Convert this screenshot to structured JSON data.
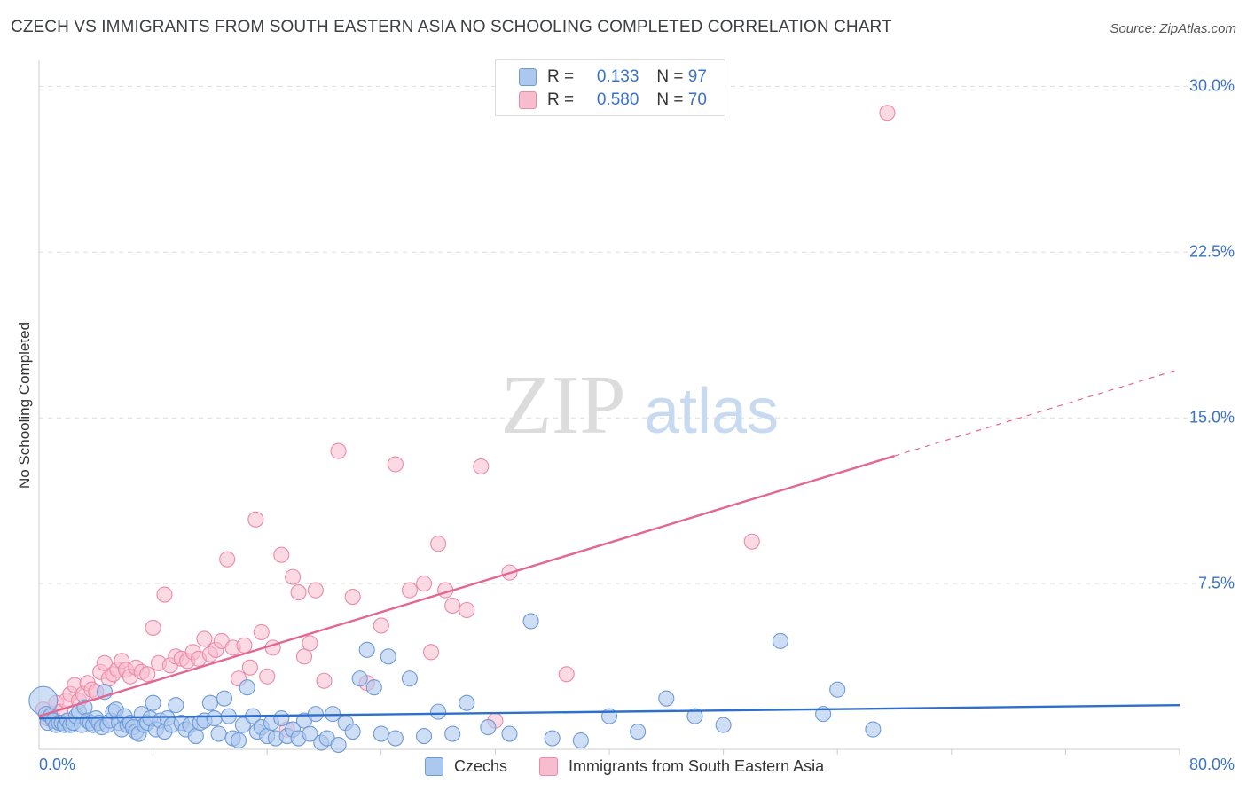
{
  "title": "CZECH VS IMMIGRANTS FROM SOUTH EASTERN ASIA NO SCHOOLING COMPLETED CORRELATION CHART",
  "source": "Source: ZipAtlas.com",
  "watermark": {
    "zip": "ZIP",
    "atlas": "atlas"
  },
  "legend_top": [
    {
      "r_label": "R =",
      "r_value": "0.133",
      "n_label": "N =",
      "n_value": "97"
    },
    {
      "r_label": "R =",
      "r_value": "0.580",
      "n_label": "N =",
      "n_value": "70"
    }
  ],
  "legend_bottom": [
    "Czechs",
    "Immigrants from South Eastern Asia"
  ],
  "colors": {
    "blue_fill": "#adc8ee",
    "blue_stroke": "#6f9ad8",
    "blue_line": "#2e6fcc",
    "pink_fill": "#f7bccd",
    "pink_stroke": "#ec8aa8",
    "pink_line": "#e26893",
    "tick": "#3a73c6",
    "grid": "#dddddd"
  },
  "chart_data": {
    "type": "scatter",
    "title": "CZECH VS IMMIGRANTS FROM SOUTH EASTERN ASIA NO SCHOOLING COMPLETED CORRELATION CHART",
    "xlabel": "",
    "ylabel": "No Schooling Completed",
    "xlim": [
      0,
      80
    ],
    "ylim": [
      0,
      31.5
    ],
    "x_tick_labels": [
      "0.0%",
      "80.0%"
    ],
    "y_ticks": [
      7.5,
      15.0,
      22.5,
      30.0
    ],
    "y_tick_labels": [
      "7.5%",
      "15.0%",
      "22.5%",
      "30.0%"
    ],
    "grid": true,
    "legend_position": "top-center",
    "series": [
      {
        "name": "Czechs",
        "color": "#adc8ee",
        "r": 0.133,
        "n": 97,
        "trend": {
          "x": [
            0,
            80
          ],
          "y": [
            1.4,
            2.0
          ]
        },
        "points": [
          [
            0.3,
            2.2
          ],
          [
            0.5,
            1.6
          ],
          [
            0.6,
            1.2
          ],
          [
            0.8,
            1.5
          ],
          [
            1.0,
            1.3
          ],
          [
            1.2,
            1.1
          ],
          [
            1.4,
            1.2
          ],
          [
            1.6,
            1.2
          ],
          [
            1.8,
            1.1
          ],
          [
            2.0,
            1.3
          ],
          [
            2.2,
            1.1
          ],
          [
            2.4,
            1.2
          ],
          [
            2.6,
            1.5
          ],
          [
            2.8,
            1.7
          ],
          [
            3.0,
            1.1
          ],
          [
            3.2,
            1.9
          ],
          [
            3.4,
            1.3
          ],
          [
            3.6,
            1.2
          ],
          [
            3.8,
            1.1
          ],
          [
            4.0,
            1.4
          ],
          [
            4.2,
            1.2
          ],
          [
            4.4,
            1.0
          ],
          [
            4.6,
            2.6
          ],
          [
            4.8,
            1.1
          ],
          [
            5.0,
            1.3
          ],
          [
            5.2,
            1.7
          ],
          [
            5.4,
            1.8
          ],
          [
            5.6,
            1.2
          ],
          [
            5.8,
            0.9
          ],
          [
            6.0,
            1.5
          ],
          [
            6.2,
            1.1
          ],
          [
            6.4,
            1.2
          ],
          [
            6.6,
            1.0
          ],
          [
            6.8,
            0.8
          ],
          [
            7.0,
            0.7
          ],
          [
            7.2,
            1.6
          ],
          [
            7.4,
            1.1
          ],
          [
            7.6,
            1.2
          ],
          [
            7.8,
            1.4
          ],
          [
            8.0,
            2.1
          ],
          [
            8.2,
            0.9
          ],
          [
            8.5,
            1.3
          ],
          [
            8.8,
            0.8
          ],
          [
            9.0,
            1.4
          ],
          [
            9.3,
            1.1
          ],
          [
            9.6,
            2.0
          ],
          [
            10.0,
            1.2
          ],
          [
            10.3,
            0.9
          ],
          [
            10.6,
            1.1
          ],
          [
            11.0,
            0.6
          ],
          [
            11.3,
            1.2
          ],
          [
            11.6,
            1.3
          ],
          [
            12.0,
            2.1
          ],
          [
            12.3,
            1.4
          ],
          [
            12.6,
            0.7
          ],
          [
            13.0,
            2.3
          ],
          [
            13.3,
            1.5
          ],
          [
            13.6,
            0.5
          ],
          [
            14.0,
            0.4
          ],
          [
            14.3,
            1.1
          ],
          [
            14.6,
            2.8
          ],
          [
            15.0,
            1.5
          ],
          [
            15.3,
            0.8
          ],
          [
            15.6,
            1.0
          ],
          [
            16.0,
            0.6
          ],
          [
            16.3,
            1.2
          ],
          [
            16.6,
            0.5
          ],
          [
            17.0,
            1.4
          ],
          [
            17.4,
            0.6
          ],
          [
            17.8,
            0.9
          ],
          [
            18.2,
            0.5
          ],
          [
            18.6,
            1.3
          ],
          [
            19.0,
            0.7
          ],
          [
            19.4,
            1.6
          ],
          [
            19.8,
            0.3
          ],
          [
            20.2,
            0.5
          ],
          [
            20.6,
            1.6
          ],
          [
            21.0,
            0.2
          ],
          [
            21.5,
            1.2
          ],
          [
            22.0,
            0.8
          ],
          [
            22.5,
            3.2
          ],
          [
            23.0,
            4.5
          ],
          [
            23.5,
            2.8
          ],
          [
            24.0,
            0.7
          ],
          [
            24.5,
            4.2
          ],
          [
            25.0,
            0.5
          ],
          [
            26.0,
            3.2
          ],
          [
            27.0,
            0.6
          ],
          [
            28.0,
            1.7
          ],
          [
            29.0,
            0.7
          ],
          [
            30.0,
            2.1
          ],
          [
            31.5,
            1.0
          ],
          [
            33.0,
            0.7
          ],
          [
            34.5,
            5.8
          ],
          [
            36.0,
            0.5
          ],
          [
            38.0,
            0.4
          ],
          [
            40.0,
            1.5
          ],
          [
            42.0,
            0.8
          ],
          [
            44.0,
            2.3
          ],
          [
            46.0,
            1.5
          ],
          [
            48.0,
            1.1
          ],
          [
            52.0,
            4.9
          ],
          [
            55.0,
            1.6
          ],
          [
            56.0,
            2.7
          ],
          [
            58.5,
            0.9
          ]
        ]
      },
      {
        "name": "Immigrants from South Eastern Asia",
        "color": "#f7bccd",
        "r": 0.58,
        "n": 70,
        "trend": {
          "x": [
            0,
            80
          ],
          "y": [
            1.5,
            17.2
          ],
          "solid_to_x": 60
        },
        "points": [
          [
            0.3,
            1.8
          ],
          [
            0.6,
            1.4
          ],
          [
            0.9,
            1.6
          ],
          [
            1.2,
            2.1
          ],
          [
            1.5,
            1.7
          ],
          [
            1.9,
            2.2
          ],
          [
            2.2,
            2.5
          ],
          [
            2.5,
            2.9
          ],
          [
            2.8,
            2.2
          ],
          [
            3.1,
            2.5
          ],
          [
            3.4,
            3.0
          ],
          [
            3.7,
            2.7
          ],
          [
            4.0,
            2.6
          ],
          [
            4.3,
            3.5
          ],
          [
            4.6,
            3.9
          ],
          [
            4.9,
            3.2
          ],
          [
            5.2,
            3.4
          ],
          [
            5.5,
            3.6
          ],
          [
            5.8,
            4.0
          ],
          [
            6.1,
            3.6
          ],
          [
            6.4,
            3.3
          ],
          [
            6.8,
            3.7
          ],
          [
            7.2,
            3.5
          ],
          [
            7.6,
            3.4
          ],
          [
            8.0,
            5.5
          ],
          [
            8.4,
            3.9
          ],
          [
            8.8,
            7.0
          ],
          [
            9.2,
            3.8
          ],
          [
            9.6,
            4.2
          ],
          [
            10.0,
            4.1
          ],
          [
            10.4,
            4.0
          ],
          [
            10.8,
            4.4
          ],
          [
            11.2,
            4.1
          ],
          [
            11.6,
            5.0
          ],
          [
            12.0,
            4.3
          ],
          [
            12.4,
            4.5
          ],
          [
            12.8,
            4.9
          ],
          [
            13.2,
            8.6
          ],
          [
            13.6,
            4.6
          ],
          [
            14.0,
            3.2
          ],
          [
            14.4,
            4.7
          ],
          [
            14.8,
            3.7
          ],
          [
            15.2,
            10.4
          ],
          [
            15.6,
            5.3
          ],
          [
            16.0,
            3.3
          ],
          [
            16.4,
            4.6
          ],
          [
            17.0,
            8.8
          ],
          [
            17.4,
            0.9
          ],
          [
            17.8,
            7.8
          ],
          [
            18.2,
            7.1
          ],
          [
            18.6,
            4.2
          ],
          [
            19.0,
            4.8
          ],
          [
            19.4,
            7.2
          ],
          [
            20.0,
            3.1
          ],
          [
            21.0,
            13.5
          ],
          [
            22.0,
            6.9
          ],
          [
            23.0,
            3.0
          ],
          [
            24.0,
            5.6
          ],
          [
            25.0,
            12.9
          ],
          [
            26.0,
            7.2
          ],
          [
            27.0,
            7.5
          ],
          [
            27.5,
            4.4
          ],
          [
            28.0,
            9.3
          ],
          [
            28.5,
            7.2
          ],
          [
            29.0,
            6.5
          ],
          [
            30.0,
            6.3
          ],
          [
            31.0,
            12.8
          ],
          [
            32.0,
            1.3
          ],
          [
            33.0,
            8.0
          ],
          [
            37.0,
            3.4
          ],
          [
            50.0,
            9.4
          ],
          [
            59.5,
            28.8
          ]
        ]
      }
    ]
  }
}
